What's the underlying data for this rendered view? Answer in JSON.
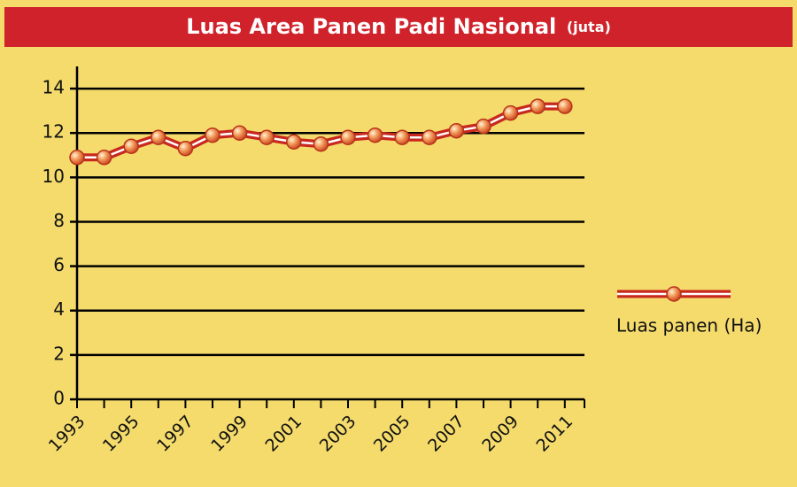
{
  "chart_data": {
    "type": "line",
    "title": "Luas Area Panen Padi Nasional",
    "subtitle": "(juta)",
    "categories": [
      "1993",
      null,
      "1995",
      null,
      "1997",
      null,
      "1999",
      null,
      "2001",
      null,
      "2003",
      null,
      "2005",
      null,
      "2007",
      null,
      "2009",
      null,
      "2011"
    ],
    "series": [
      {
        "name": "Luas panen (Ha)",
        "color": "#c8281e",
        "values": [
          10.9,
          10.9,
          11.4,
          11.8,
          11.3,
          11.9,
          12.0,
          11.8,
          11.6,
          11.5,
          11.8,
          11.9,
          11.8,
          11.8,
          12.1,
          12.3,
          12.9,
          13.2,
          13.2
        ]
      }
    ],
    "ylim": [
      0,
      15
    ],
    "yticks": [
      0,
      2,
      4,
      6,
      8,
      10,
      12,
      14
    ],
    "grid": true,
    "legend": "right"
  }
}
